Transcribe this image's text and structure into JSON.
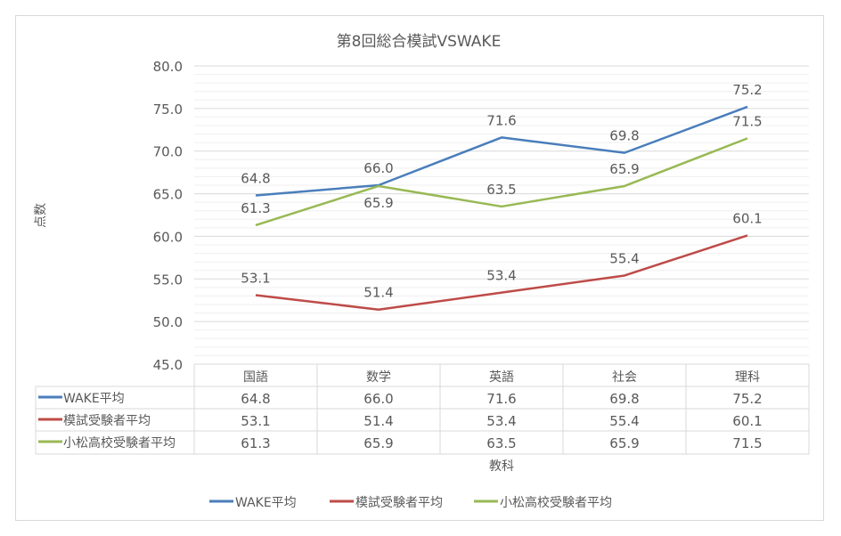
{
  "chart_data": {
    "type": "line",
    "title": "第8回総合模試VSWAKE",
    "xlabel": "教科",
    "ylabel": "点数",
    "ylim": [
      45,
      80
    ],
    "yticks": [
      "45.0",
      "50.0",
      "55.0",
      "60.0",
      "65.0",
      "70.0",
      "75.0",
      "80.0"
    ],
    "grid": true,
    "legend_position": "bottom",
    "categories": [
      "国語",
      "数学",
      "英語",
      "社会",
      "理科"
    ],
    "series": [
      {
        "name": "WAKE平均",
        "color": "#4a7ebb",
        "values": [
          64.8,
          66.0,
          71.6,
          69.8,
          75.2
        ]
      },
      {
        "name": "模試受験者平均",
        "color": "#be4b48",
        "values": [
          53.1,
          51.4,
          53.4,
          55.4,
          60.1
        ]
      },
      {
        "name": "小松高校受験者平均",
        "color": "#98b954",
        "values": [
          61.3,
          65.9,
          63.5,
          65.9,
          71.5
        ]
      }
    ],
    "data_table": true
  }
}
